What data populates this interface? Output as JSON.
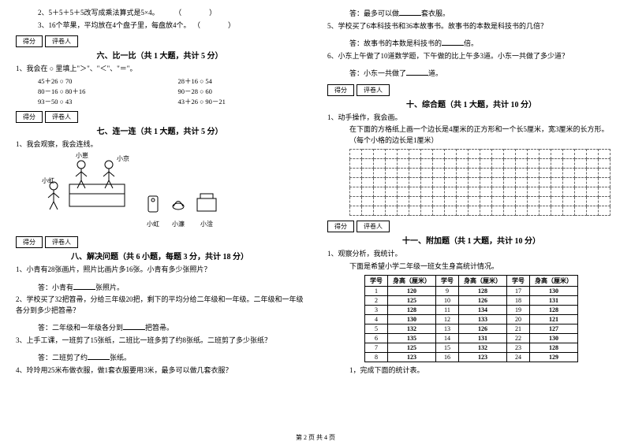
{
  "left": {
    "q2": "2、5＋5＋5＋5改写成乘法算式是5×4。",
    "q3": "3、16个苹果，平均放在4个盘子里，每盘放4个。",
    "paren2": "（　　　）",
    "paren3": "（　　　）",
    "sec6": {
      "title": "六、比一比（共 1 大题，共计 5 分）",
      "score": "得分",
      "marker": "评卷人"
    },
    "s6_intro": "1、我会在 ○ 里填上\"＞\"、\"＜\"、\"＝\"。",
    "s6_items": [
      "45＋26 ○ 70",
      "28＋16 ○ 54",
      "80－16 ○ 80＋16",
      "90－28 ○ 60",
      "93－50 ○ 43",
      "43＋26 ○ 90－21"
    ],
    "sec7": {
      "title": "七、连一连（共 1 大题，共计 5 分）",
      "score": "得分",
      "marker": "评卷人"
    },
    "s7_intro": "1、我会观察，我会连线。",
    "s7_labels": {
      "xw": "小崽",
      "xj": "小京",
      "xh": "小虹",
      "xl": "小濂",
      "xg": "小淦"
    },
    "sec8": {
      "title": "八、解决问题（共 6 小题，每题 3 分，共计 18 分）",
      "score": "得分",
      "marker": "评卷人"
    },
    "s8": {
      "q1": "1、小青有28张画片，照片比画片多16张。小青有多少张照片？",
      "a1a": "答：小青有",
      "a1b": "张照片。",
      "q2": "2、学校买了32把笤帚，分给三年级20把，剩下的平均分给二年级和一年级。二年级和一年级各分到多少把笤帚？",
      "a2a": "答：二年级和一年级各分到",
      "a2b": "把笤帚。",
      "q3": "3、上手工课，一班剪了15张纸，二班比一班多剪了约8张纸。二班剪了多少张纸？",
      "a3a": "答：二班剪了约",
      "a3b": "张纸。",
      "q4": "4、玲玲用25米布做衣服，做1套衣服要用3米，最多可以做几套衣服？"
    }
  },
  "right": {
    "a4a": "答：最多可以做",
    "a4b": "套衣服。",
    "q5": "5、学校买了6本科技书和36本故事书。故事书的本数是科技书的几倍？",
    "a5a": "答：故事书的本数是科技书的",
    "a5b": "倍。",
    "q6": "6、小东上午做了10道数学题，下午做的比上午多3道。小东一共做了多少道？",
    "a6a": "答：小东一共做了",
    "a6b": "道。",
    "sec10": {
      "title": "十、综合题（共 1 大题，共计 10 分）",
      "score": "得分",
      "marker": "评卷人"
    },
    "s10_q1": "1、动手操作，我会画。",
    "s10_desc": "在下面的方格纸上画一个边长是4厘米的正方形和一个长5厘米，宽3厘米的长方形。（每个小格的边长是1厘米）",
    "grid": {
      "rows": 7,
      "cols": 22
    },
    "sec11": {
      "title": "十一、附加题（共 1 大题，共计 10 分）",
      "score": "得分",
      "marker": "评卷人"
    },
    "s11_q1": "1、观察分析，我统计。",
    "s11_desc": "下面是希望小学二年级一班女生身高统计情况。",
    "table": {
      "headers": [
        "学号",
        "身高（厘米）",
        "学号",
        "身高（厘米）",
        "学号",
        "身高（厘米）"
      ],
      "rows": [
        [
          "1",
          "120",
          "9",
          "128",
          "17",
          "130"
        ],
        [
          "2",
          "125",
          "10",
          "126",
          "18",
          "131"
        ],
        [
          "3",
          "128",
          "11",
          "134",
          "19",
          "128"
        ],
        [
          "4",
          "130",
          "12",
          "133",
          "20",
          "121"
        ],
        [
          "5",
          "132",
          "13",
          "126",
          "21",
          "127"
        ],
        [
          "6",
          "135",
          "14",
          "131",
          "22",
          "130"
        ],
        [
          "7",
          "125",
          "15",
          "132",
          "23",
          "128"
        ],
        [
          "8",
          "123",
          "16",
          "123",
          "24",
          "129"
        ]
      ]
    },
    "s11_end": "1，完成下面的统计表。"
  },
  "footer": "第 2 页 共 4 页"
}
